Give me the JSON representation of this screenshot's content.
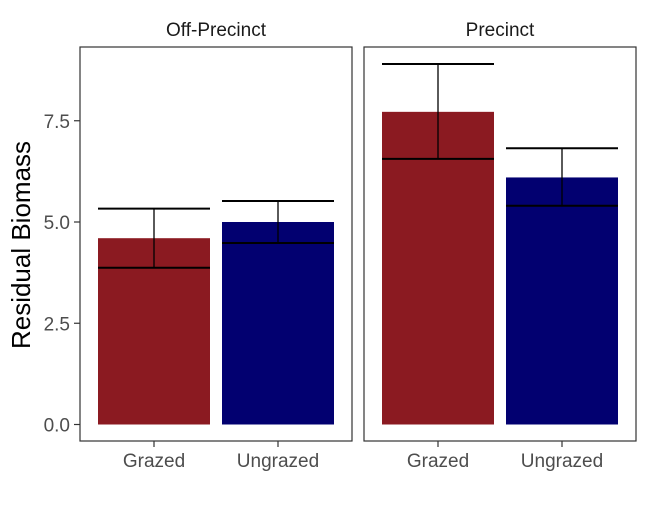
{
  "chart_data": {
    "type": "bar",
    "ylabel": "Residual Biomass",
    "ylim": [
      0,
      9.2
    ],
    "yticks": [
      "0.0",
      "2.5",
      "5.0",
      "7.5"
    ],
    "categories": [
      "Grazed",
      "Ungrazed"
    ],
    "colors": {
      "Grazed": "#8b1a21",
      "Ungrazed": "#020070"
    },
    "grid": false,
    "legend": "none",
    "panels": [
      {
        "label": "Off-Precinct",
        "bars": [
          {
            "category": "Grazed",
            "value": 4.6,
            "lower": 3.87,
            "upper": 5.33
          },
          {
            "category": "Ungrazed",
            "value": 5.0,
            "lower": 4.48,
            "upper": 5.52
          }
        ]
      },
      {
        "label": "Precinct",
        "bars": [
          {
            "category": "Grazed",
            "value": 7.72,
            "lower": 6.56,
            "upper": 8.9
          },
          {
            "category": "Ungrazed",
            "value": 6.1,
            "lower": 5.4,
            "upper": 6.82
          }
        ]
      }
    ]
  }
}
